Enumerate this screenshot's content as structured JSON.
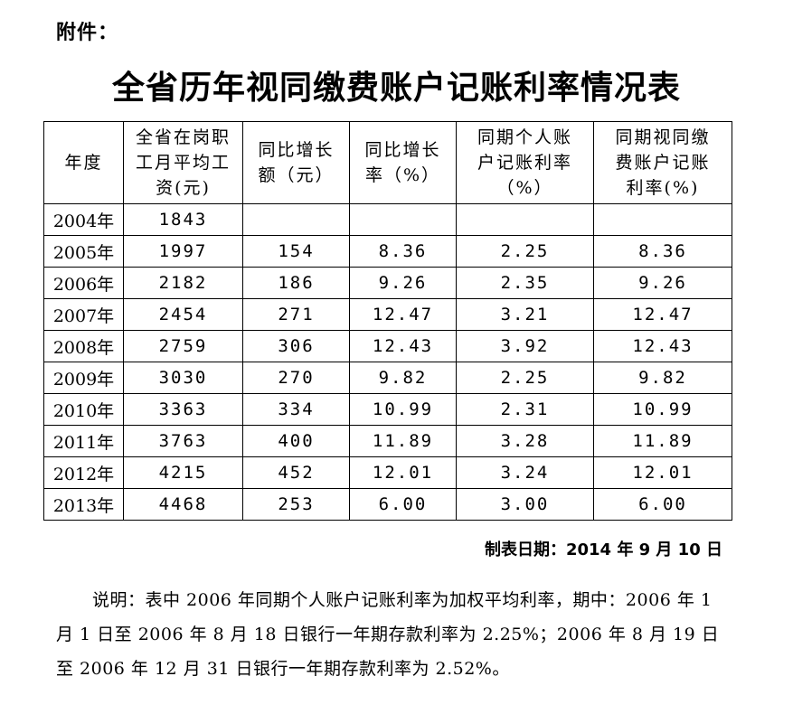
{
  "attachment_label": "附件：",
  "title": "全省历年视同缴费账户记账利率情况表",
  "table": {
    "headers": [
      "年度",
      "全省在岗职工月平均工资(元)",
      "同比增长额（元）",
      "同比增长率（%）",
      "同期个人账户记账利率（%）",
      "同期视同缴费账户记账利率(%)"
    ],
    "rows": [
      [
        "2004年",
        "1843",
        "",
        "",
        "",
        ""
      ],
      [
        "2005年",
        "1997",
        "154",
        "8.36",
        "2.25",
        "8.36"
      ],
      [
        "2006年",
        "2182",
        "186",
        "9.26",
        "2.35",
        "9.26"
      ],
      [
        "2007年",
        "2454",
        "271",
        "12.47",
        "3.21",
        "12.47"
      ],
      [
        "2008年",
        "2759",
        "306",
        "12.43",
        "3.92",
        "12.43"
      ],
      [
        "2009年",
        "3030",
        "270",
        "9.82",
        "2.25",
        "9.82"
      ],
      [
        "2010年",
        "3363",
        "334",
        "10.99",
        "2.31",
        "10.99"
      ],
      [
        "2011年",
        "3763",
        "400",
        "11.89",
        "3.28",
        "11.89"
      ],
      [
        "2012年",
        "4215",
        "452",
        "12.01",
        "3.24",
        "12.01"
      ],
      [
        "2013年",
        "4468",
        "253",
        "6.00",
        "3.00",
        "6.00"
      ]
    ]
  },
  "date_line": "制表日期：2014 年 9 月 10 日",
  "note": "说明：表中 2006 年同期个人账户记账利率为加权平均利率，期中：2006 年 1 月 1 日至 2006 年 8 月 18 日银行一年期存款利率为 2.25%；2006 年 8 月 19 日至 2006 年 12 月 31 日银行一年期存款利率为 2.52%。"
}
